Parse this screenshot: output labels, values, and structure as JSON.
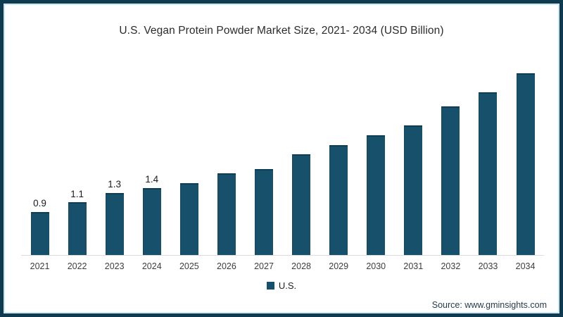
{
  "frame": {
    "border_color": "#0f3a50",
    "inner_line_color": "#cbe7f1",
    "background": "#ffffff"
  },
  "title": "U.S. Vegan Protein Powder Market Size, 2021- 2034 (USD Billion)",
  "legend": {
    "label": "U.S.",
    "swatch_color": "#16506a"
  },
  "source": "Source: www.gminsights.com",
  "chart_data": {
    "type": "bar",
    "title": "U.S. Vegan Protein Powder Market Size, 2021- 2034 (USD Billion)",
    "xlabel": "",
    "ylabel": "",
    "categories": [
      "2021",
      "2022",
      "2023",
      "2024",
      "2025",
      "2026",
      "2027",
      "2028",
      "2029",
      "2030",
      "2031",
      "2032",
      "2033",
      "2034"
    ],
    "series": [
      {
        "name": "U.S.",
        "color": "#16506a",
        "values": [
          0.9,
          1.1,
          1.3,
          1.4,
          1.5,
          1.7,
          1.8,
          2.1,
          2.3,
          2.5,
          2.7,
          3.1,
          3.4,
          3.8
        ]
      }
    ],
    "data_labels": [
      "0.9",
      "1.1",
      "1.3",
      "1.4",
      "",
      "",
      "",
      "",
      "",
      "",
      "",
      "",
      "",
      ""
    ],
    "ylim": [
      0,
      4
    ],
    "grid": false,
    "legend_position": "bottom",
    "axis_line_color": "#dcdcdc"
  }
}
